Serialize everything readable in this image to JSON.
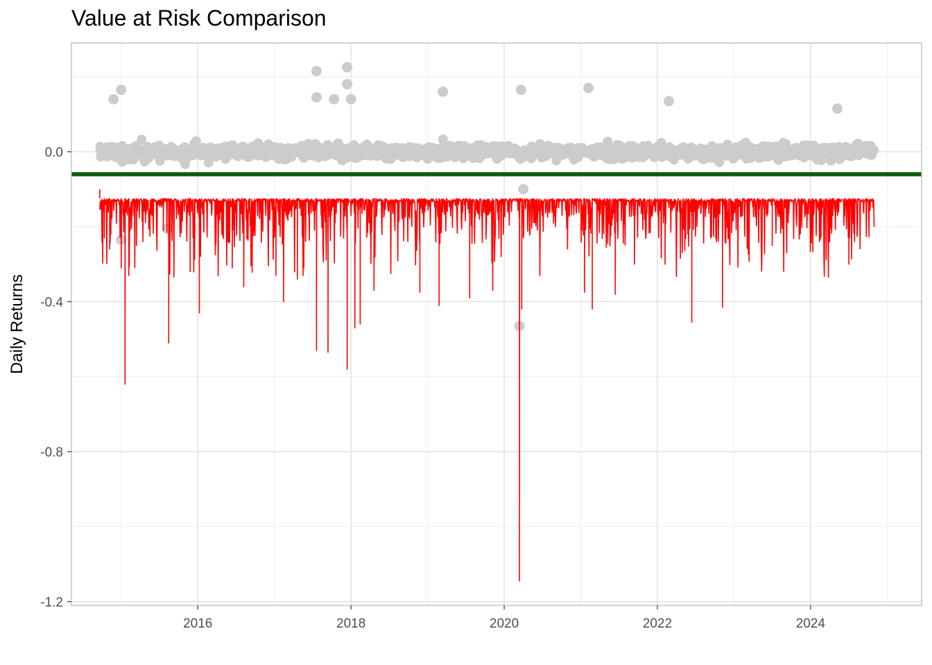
{
  "chart_data": {
    "type": "scatter",
    "title": "Value at Risk Comparison",
    "xlabel": "",
    "ylabel": "Daily Returns",
    "xlim": [
      2014.35,
      2025.45
    ],
    "ylim": [
      -1.21,
      0.29
    ],
    "x_ticks": [
      2016,
      2018,
      2020,
      2022,
      2024
    ],
    "x_tick_labels": [
      "2016",
      "2018",
      "2020",
      "2022",
      "2024"
    ],
    "y_ticks": [
      0.0,
      -0.4,
      -0.8,
      -1.2
    ],
    "y_tick_labels": [
      "0.0",
      "-0.4",
      "-0.8",
      "-1.2"
    ],
    "grid": true,
    "legend": "none",
    "x_range_data": [
      2014.72,
      2024.83
    ],
    "series": [
      {
        "kind": "scatter",
        "color": "#cccccc",
        "approx_range": [
          -0.1,
          0.1
        ],
        "outliers": [
          {
            "x": 2015.0,
            "y": 0.165
          },
          {
            "x": 2014.9,
            "y": 0.14
          },
          {
            "x": 2015.0,
            "y": -0.235
          },
          {
            "x": 2015.6,
            "y": -0.205
          },
          {
            "x": 2017.55,
            "y": 0.215
          },
          {
            "x": 2017.55,
            "y": 0.145
          },
          {
            "x": 2017.78,
            "y": 0.14
          },
          {
            "x": 2017.95,
            "y": 0.225
          },
          {
            "x": 2017.95,
            "y": 0.18
          },
          {
            "x": 2018.0,
            "y": 0.14
          },
          {
            "x": 2019.2,
            "y": 0.16
          },
          {
            "x": 2020.22,
            "y": 0.165
          },
          {
            "x": 2020.2,
            "y": -0.465
          },
          {
            "x": 2020.25,
            "y": -0.1
          },
          {
            "x": 2021.1,
            "y": 0.17
          },
          {
            "x": 2022.15,
            "y": 0.135
          },
          {
            "x": 2024.35,
            "y": 0.115
          }
        ]
      },
      {
        "kind": "hline",
        "color": "#0b5a0b",
        "y": -0.06
      },
      {
        "kind": "drawdown",
        "color": "#ff0000",
        "baseline": -0.125,
        "spikes": [
          {
            "x": 2014.78,
            "y": -0.23
          },
          {
            "x": 2014.85,
            "y": -0.26
          },
          {
            "x": 2015.0,
            "y": -0.31
          },
          {
            "x": 2015.05,
            "y": -0.62
          },
          {
            "x": 2015.1,
            "y": -0.33
          },
          {
            "x": 2015.2,
            "y": -0.25
          },
          {
            "x": 2015.55,
            "y": -0.21
          },
          {
            "x": 2015.62,
            "y": -0.51
          },
          {
            "x": 2015.9,
            "y": -0.32
          },
          {
            "x": 2016.02,
            "y": -0.43
          },
          {
            "x": 2016.45,
            "y": -0.31
          },
          {
            "x": 2016.6,
            "y": -0.36
          },
          {
            "x": 2017.02,
            "y": -0.33
          },
          {
            "x": 2017.12,
            "y": -0.4
          },
          {
            "x": 2017.3,
            "y": -0.34
          },
          {
            "x": 2017.55,
            "y": -0.53
          },
          {
            "x": 2017.7,
            "y": -0.535
          },
          {
            "x": 2017.95,
            "y": -0.58
          },
          {
            "x": 2018.05,
            "y": -0.47
          },
          {
            "x": 2018.12,
            "y": -0.46
          },
          {
            "x": 2018.3,
            "y": -0.37
          },
          {
            "x": 2018.9,
            "y": -0.375
          },
          {
            "x": 2019.15,
            "y": -0.41
          },
          {
            "x": 2019.55,
            "y": -0.39
          },
          {
            "x": 2019.85,
            "y": -0.37
          },
          {
            "x": 2020.2,
            "y": -1.145
          },
          {
            "x": 2020.23,
            "y": -0.42
          },
          {
            "x": 2021.05,
            "y": -0.375
          },
          {
            "x": 2021.15,
            "y": -0.42
          },
          {
            "x": 2021.45,
            "y": -0.38
          },
          {
            "x": 2021.7,
            "y": -0.3
          },
          {
            "x": 2022.1,
            "y": -0.3
          },
          {
            "x": 2022.45,
            "y": -0.455
          },
          {
            "x": 2022.85,
            "y": -0.415
          },
          {
            "x": 2023.5,
            "y": -0.25
          },
          {
            "x": 2024.25,
            "y": -0.24
          },
          {
            "x": 2024.5,
            "y": -0.3
          }
        ]
      }
    ]
  }
}
